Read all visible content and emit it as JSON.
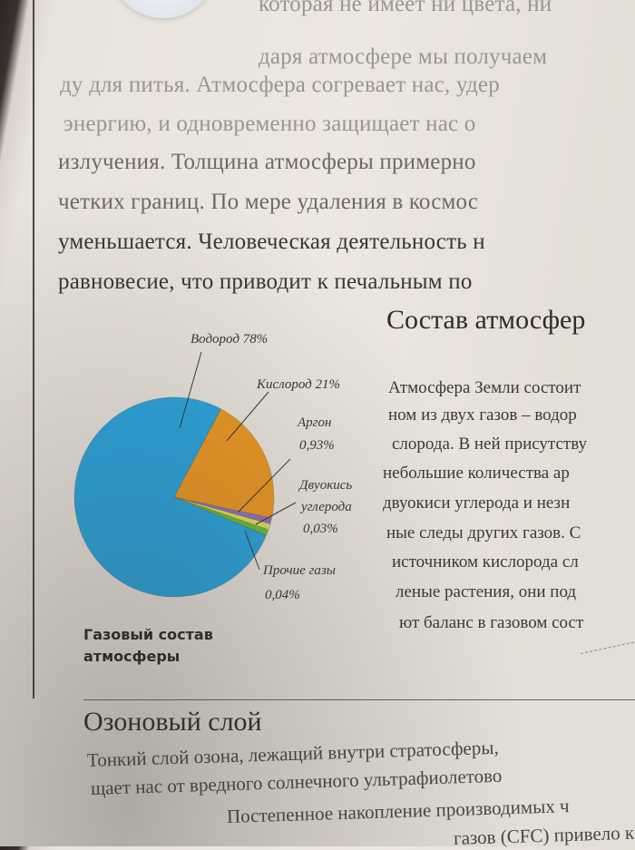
{
  "top_paragraph": [
    "которая не имеет ни цвета, ни",
    "даря атмосфере мы получаем",
    "ду для питья. Атмосфера согревает нас, удер",
    "энергию, и одновременно защищает нас о",
    "излучения. Толщина атмосферы примерно",
    "четких границ. По мере удаления в космос",
    "уменьшается. Человеческая деятельность н",
    "равновесие, что приводит к печальным по"
  ],
  "section": {
    "title": "Состав атмосфер",
    "lines": [
      "Атмосфера Земли состоит",
      "ном из двух газов – водор",
      "слорода. В ней присутству",
      "небольшие количества ар",
      "двуокиси углерода и незн",
      "ные следы других газов. С",
      "источником кислорода сл",
      "леные растения, они под",
      "ют баланс в газовом сост"
    ]
  },
  "chart_data": {
    "type": "pie",
    "caption": "Газовый состав атмосферы",
    "slices": [
      {
        "name": "Водород",
        "value": 78,
        "label": "Водород 78%",
        "color": "#2aa6e0"
      },
      {
        "name": "Кислород",
        "value": 21,
        "label": "Кислород 21%",
        "color": "#ef9a24"
      },
      {
        "name": "Аргон",
        "value": 0.93,
        "label_lines": [
          "Аргон",
          "0,93%"
        ],
        "color": "#8d76c5"
      },
      {
        "name": "Двуокись углерода",
        "value": 0.03,
        "label_lines": [
          "Двуокись",
          "углерода",
          "0,03%"
        ],
        "color": "#e7e25a"
      },
      {
        "name": "Прочие газы",
        "value": 0.04,
        "label_lines": [
          "Прочие газы",
          "0,04%"
        ],
        "color": "#6bbf3a"
      }
    ]
  },
  "ozone": {
    "title": "Озоновый слой",
    "lines": [
      "Тонкий слой озона, лежащий внутри стратосферы,",
      "щает нас от вредного солнечного ультрафиолетово",
      "Постепенное накопление производимых ч",
      "газов (CFC) привело к з"
    ]
  }
}
